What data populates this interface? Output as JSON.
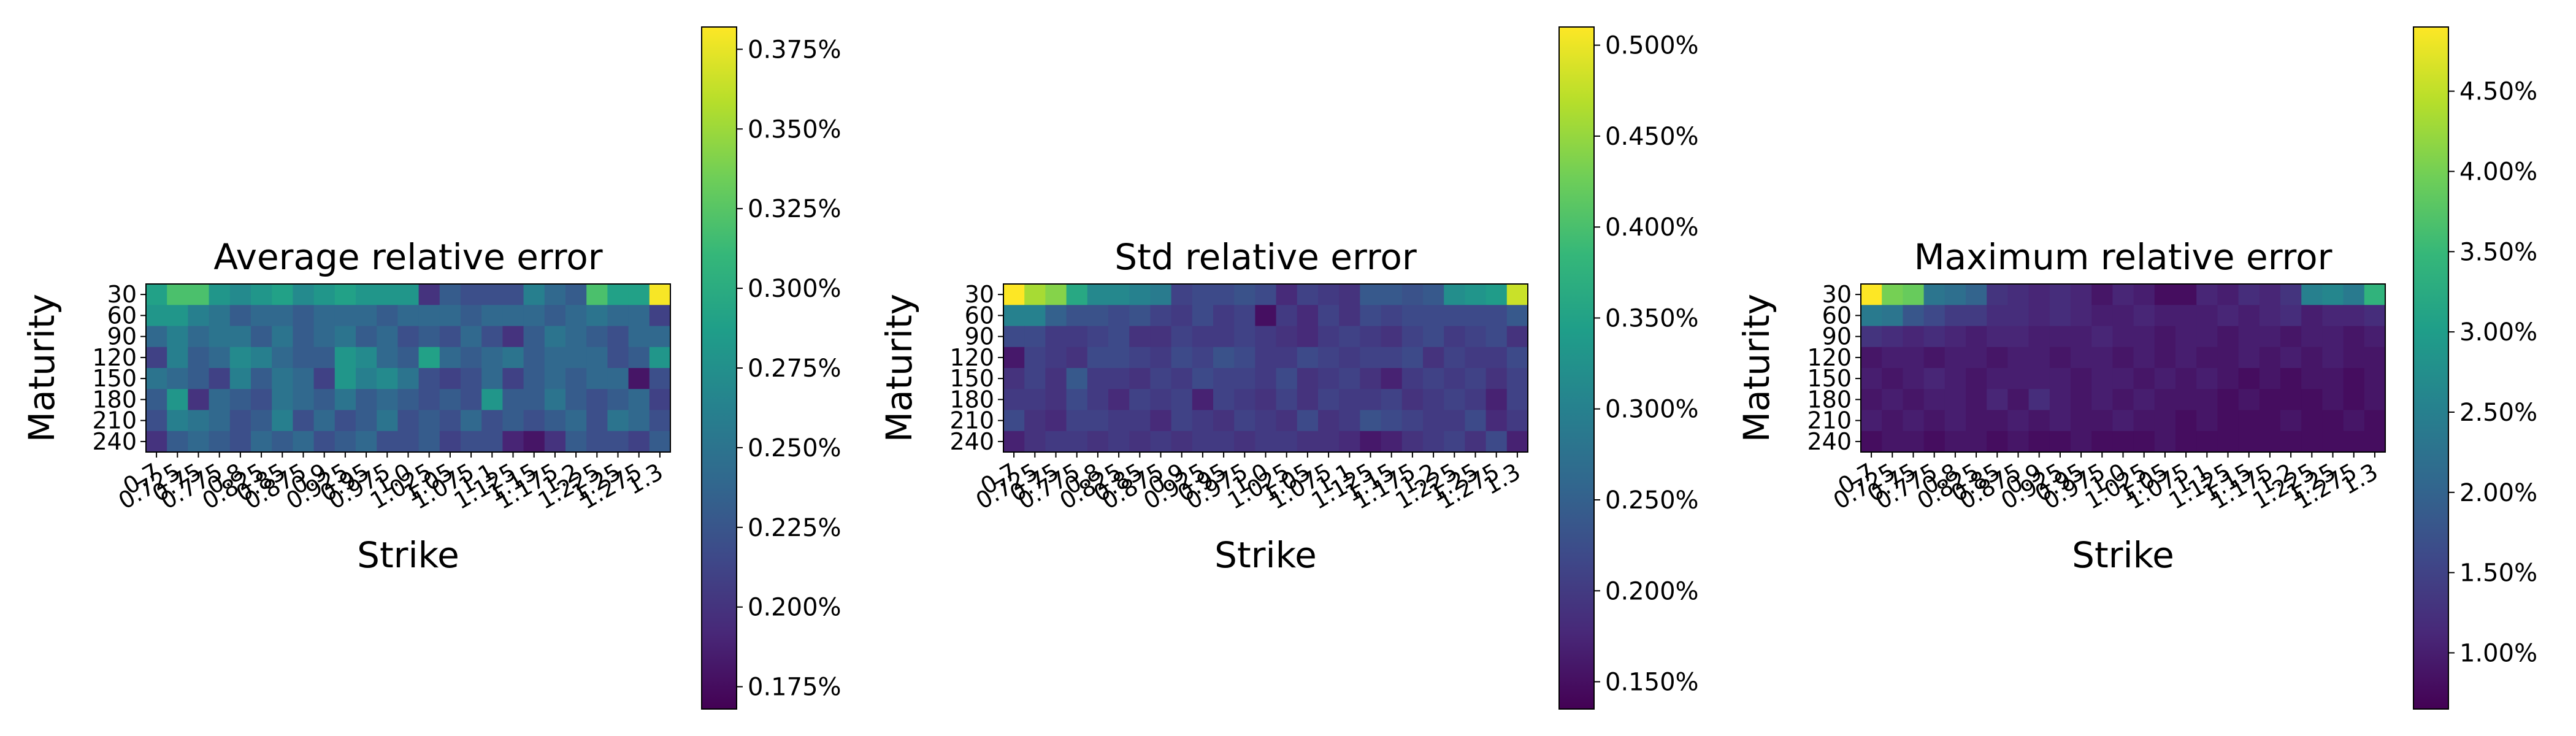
{
  "colormap": "viridis",
  "chart_data": [
    {
      "type": "heatmap",
      "title": "Average relative error",
      "xlabel": "Strike",
      "ylabel": "Maturity",
      "x_categories": [
        "0.7",
        "0.725",
        "0.75",
        "0.775",
        "0.8",
        "0.825",
        "0.85",
        "0.875",
        "0.9",
        "0.925",
        "0.95",
        "0.975",
        "1.0",
        "1.025",
        "1.05",
        "1.075",
        "1.1",
        "1.125",
        "1.15",
        "1.175",
        "1.2",
        "1.225",
        "1.25",
        "1.275",
        "1.3"
      ],
      "y_categories": [
        "30",
        "60",
        "90",
        "120",
        "150",
        "180",
        "210",
        "240"
      ],
      "colorbar_range": [
        0.168,
        0.382
      ],
      "colorbar_ticks": [
        "0.175%",
        "0.200%",
        "0.225%",
        "0.250%",
        "0.275%",
        "0.300%",
        "0.325%",
        "0.350%",
        "0.375%"
      ],
      "values": [
        [
          0.29,
          0.32,
          0.32,
          0.28,
          0.27,
          0.28,
          0.29,
          0.27,
          0.28,
          0.29,
          0.28,
          0.28,
          0.28,
          0.2,
          0.23,
          0.22,
          0.22,
          0.22,
          0.26,
          0.24,
          0.23,
          0.32,
          0.29,
          0.29,
          0.38
        ],
        [
          0.28,
          0.28,
          0.26,
          0.25,
          0.23,
          0.24,
          0.24,
          0.23,
          0.24,
          0.24,
          0.24,
          0.23,
          0.24,
          0.24,
          0.24,
          0.23,
          0.24,
          0.24,
          0.24,
          0.23,
          0.24,
          0.25,
          0.24,
          0.24,
          0.21
        ],
        [
          0.24,
          0.26,
          0.24,
          0.25,
          0.25,
          0.23,
          0.25,
          0.23,
          0.24,
          0.25,
          0.23,
          0.24,
          0.22,
          0.23,
          0.22,
          0.24,
          0.22,
          0.2,
          0.23,
          0.25,
          0.24,
          0.23,
          0.22,
          0.24,
          0.24
        ],
        [
          0.21,
          0.26,
          0.23,
          0.24,
          0.27,
          0.26,
          0.24,
          0.23,
          0.23,
          0.28,
          0.27,
          0.24,
          0.23,
          0.29,
          0.24,
          0.23,
          0.24,
          0.25,
          0.23,
          0.24,
          0.24,
          0.24,
          0.22,
          0.23,
          0.28
        ],
        [
          0.25,
          0.24,
          0.23,
          0.21,
          0.26,
          0.23,
          0.25,
          0.24,
          0.21,
          0.28,
          0.26,
          0.27,
          0.25,
          0.22,
          0.21,
          0.22,
          0.24,
          0.21,
          0.23,
          0.24,
          0.23,
          0.24,
          0.24,
          0.18,
          0.22
        ],
        [
          0.23,
          0.28,
          0.2,
          0.24,
          0.23,
          0.22,
          0.25,
          0.24,
          0.23,
          0.25,
          0.23,
          0.24,
          0.23,
          0.22,
          0.23,
          0.22,
          0.28,
          0.23,
          0.23,
          0.25,
          0.23,
          0.22,
          0.23,
          0.24,
          0.21
        ],
        [
          0.22,
          0.26,
          0.25,
          0.24,
          0.22,
          0.23,
          0.26,
          0.22,
          0.24,
          0.22,
          0.23,
          0.25,
          0.22,
          0.23,
          0.22,
          0.24,
          0.22,
          0.23,
          0.22,
          0.23,
          0.24,
          0.22,
          0.25,
          0.24,
          0.22
        ],
        [
          0.2,
          0.23,
          0.24,
          0.23,
          0.22,
          0.24,
          0.23,
          0.24,
          0.22,
          0.23,
          0.24,
          0.22,
          0.22,
          0.23,
          0.21,
          0.22,
          0.22,
          0.19,
          0.18,
          0.2,
          0.23,
          0.22,
          0.22,
          0.21,
          0.23
        ]
      ]
    },
    {
      "type": "heatmap",
      "title": "Std relative error",
      "xlabel": "Strike",
      "ylabel": "Maturity",
      "x_categories": [
        "0.7",
        "0.725",
        "0.75",
        "0.775",
        "0.8",
        "0.825",
        "0.85",
        "0.875",
        "0.9",
        "0.925",
        "0.95",
        "0.975",
        "1.0",
        "1.025",
        "1.05",
        "1.075",
        "1.1",
        "1.125",
        "1.15",
        "1.175",
        "1.2",
        "1.225",
        "1.25",
        "1.275",
        "1.3"
      ],
      "y_categories": [
        "30",
        "60",
        "90",
        "120",
        "150",
        "180",
        "210",
        "240"
      ],
      "colorbar_range": [
        0.135,
        0.51
      ],
      "colorbar_ticks": [
        "0.150%",
        "0.200%",
        "0.250%",
        "0.300%",
        "0.350%",
        "0.400%",
        "0.450%",
        "0.500%"
      ],
      "values": [
        [
          0.51,
          0.46,
          0.44,
          0.36,
          0.31,
          0.31,
          0.3,
          0.29,
          0.21,
          0.22,
          0.22,
          0.23,
          0.22,
          0.18,
          0.21,
          0.2,
          0.19,
          0.24,
          0.24,
          0.23,
          0.24,
          0.32,
          0.33,
          0.34,
          0.48
        ],
        [
          0.3,
          0.3,
          0.25,
          0.23,
          0.23,
          0.22,
          0.23,
          0.21,
          0.2,
          0.22,
          0.2,
          0.21,
          0.15,
          0.2,
          0.18,
          0.21,
          0.19,
          0.22,
          0.21,
          0.22,
          0.22,
          0.22,
          0.22,
          0.22,
          0.24
        ],
        [
          0.22,
          0.22,
          0.2,
          0.2,
          0.21,
          0.22,
          0.19,
          0.19,
          0.21,
          0.2,
          0.2,
          0.21,
          0.2,
          0.19,
          0.18,
          0.2,
          0.21,
          0.2,
          0.19,
          0.21,
          0.22,
          0.2,
          0.21,
          0.22,
          0.19
        ],
        [
          0.16,
          0.21,
          0.2,
          0.19,
          0.22,
          0.22,
          0.21,
          0.2,
          0.22,
          0.21,
          0.23,
          0.22,
          0.2,
          0.2,
          0.22,
          0.21,
          0.2,
          0.21,
          0.21,
          0.22,
          0.19,
          0.21,
          0.2,
          0.2,
          0.22
        ],
        [
          0.19,
          0.21,
          0.19,
          0.24,
          0.2,
          0.2,
          0.19,
          0.21,
          0.2,
          0.22,
          0.21,
          0.21,
          0.2,
          0.22,
          0.19,
          0.2,
          0.21,
          0.19,
          0.17,
          0.2,
          0.21,
          0.2,
          0.21,
          0.19,
          0.21
        ],
        [
          0.2,
          0.2,
          0.19,
          0.22,
          0.2,
          0.18,
          0.21,
          0.2,
          0.21,
          0.17,
          0.21,
          0.2,
          0.19,
          0.21,
          0.19,
          0.21,
          0.2,
          0.2,
          0.21,
          0.19,
          0.2,
          0.21,
          0.2,
          0.17,
          0.21
        ],
        [
          0.22,
          0.19,
          0.18,
          0.21,
          0.21,
          0.2,
          0.2,
          0.18,
          0.21,
          0.2,
          0.19,
          0.21,
          0.2,
          0.19,
          0.22,
          0.19,
          0.2,
          0.23,
          0.22,
          0.21,
          0.2,
          0.2,
          0.22,
          0.18,
          0.2
        ],
        [
          0.17,
          0.19,
          0.2,
          0.2,
          0.19,
          0.2,
          0.19,
          0.2,
          0.19,
          0.2,
          0.2,
          0.19,
          0.2,
          0.2,
          0.19,
          0.19,
          0.18,
          0.16,
          0.17,
          0.19,
          0.2,
          0.21,
          0.19,
          0.22,
          0.17
        ]
      ]
    },
    {
      "type": "heatmap",
      "title": "Maximum relative error",
      "xlabel": "Strike",
      "ylabel": "Maturity",
      "x_categories": [
        "0.7",
        "0.725",
        "0.75",
        "0.775",
        "0.8",
        "0.825",
        "0.85",
        "0.875",
        "0.9",
        "0.925",
        "0.95",
        "0.975",
        "1.0",
        "1.025",
        "1.05",
        "1.075",
        "1.1",
        "1.125",
        "1.15",
        "1.175",
        "1.2",
        "1.225",
        "1.25",
        "1.275",
        "1.3"
      ],
      "y_categories": [
        "30",
        "60",
        "90",
        "120",
        "150",
        "180",
        "210",
        "240"
      ],
      "colorbar_range": [
        0.65,
        4.9
      ],
      "colorbar_ticks": [
        "1.00%",
        "1.50%",
        "2.00%",
        "2.50%",
        "3.00%",
        "3.50%",
        "4.00%",
        "4.50%"
      ],
      "values": [
        [
          4.9,
          4.0,
          3.9,
          2.3,
          2.2,
          2.0,
          1.3,
          1.2,
          1.1,
          1.2,
          1.1,
          0.9,
          1.1,
          1.0,
          0.8,
          0.8,
          1.1,
          1.0,
          1.2,
          1.1,
          1.3,
          2.5,
          2.6,
          2.4,
          3.4
        ],
        [
          2.4,
          2.3,
          1.8,
          1.6,
          1.4,
          1.4,
          1.2,
          1.2,
          1.1,
          1.2,
          1.1,
          1.0,
          1.0,
          1.1,
          1.0,
          1.0,
          1.0,
          1.1,
          1.0,
          1.1,
          1.2,
          1.0,
          1.1,
          1.1,
          1.2
        ],
        [
          1.3,
          1.2,
          1.1,
          1.2,
          1.1,
          1.0,
          1.1,
          1.1,
          1.0,
          1.0,
          1.0,
          1.1,
          1.0,
          1.0,
          0.9,
          1.0,
          1.0,
          0.9,
          1.0,
          1.0,
          0.9,
          1.0,
          1.0,
          0.9,
          1.0
        ],
        [
          0.9,
          1.0,
          1.0,
          0.9,
          1.0,
          1.0,
          0.9,
          1.0,
          1.0,
          0.9,
          1.0,
          1.0,
          0.9,
          1.0,
          0.9,
          1.0,
          0.9,
          0.9,
          1.0,
          0.9,
          1.0,
          0.9,
          1.0,
          0.9,
          0.9
        ],
        [
          1.0,
          0.9,
          1.0,
          1.1,
          1.0,
          0.9,
          1.0,
          1.0,
          1.0,
          1.0,
          0.9,
          1.0,
          1.0,
          0.9,
          1.0,
          0.9,
          1.0,
          0.9,
          0.8,
          0.9,
          0.8,
          0.9,
          0.9,
          0.8,
          0.9
        ],
        [
          0.9,
          1.0,
          0.9,
          1.0,
          1.0,
          0.9,
          1.1,
          0.9,
          1.2,
          1.0,
          0.9,
          1.0,
          0.9,
          1.0,
          0.9,
          0.9,
          0.9,
          0.8,
          0.9,
          0.8,
          0.8,
          0.8,
          0.9,
          0.8,
          0.9
        ],
        [
          1.0,
          0.9,
          1.0,
          0.9,
          1.0,
          0.9,
          0.9,
          1.0,
          0.9,
          1.0,
          0.9,
          0.9,
          1.0,
          0.9,
          0.9,
          0.8,
          0.9,
          0.8,
          0.8,
          0.8,
          0.9,
          0.8,
          0.8,
          0.9,
          0.8
        ],
        [
          0.8,
          0.9,
          0.9,
          0.8,
          0.9,
          0.9,
          0.8,
          0.9,
          0.8,
          0.8,
          0.9,
          0.8,
          0.8,
          0.8,
          0.9,
          0.8,
          0.8,
          0.8,
          0.8,
          0.8,
          0.8,
          0.8,
          0.8,
          0.8,
          0.8
        ]
      ]
    }
  ]
}
